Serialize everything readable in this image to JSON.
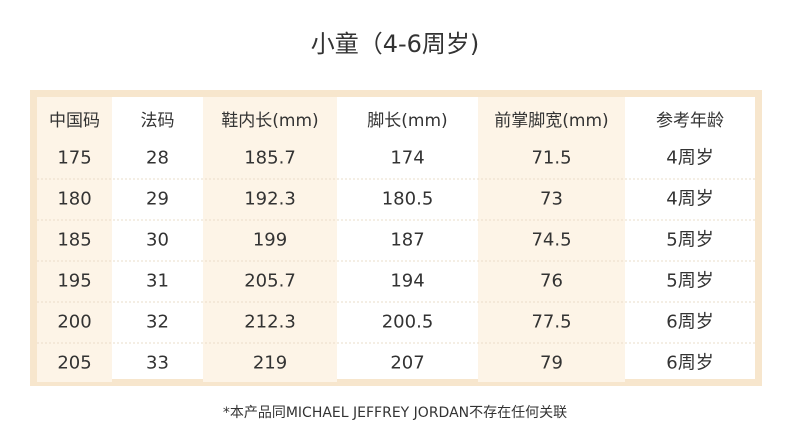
{
  "title": "小童（4-6周岁)",
  "table": {
    "header": [
      "中国码",
      "法码",
      "鞋内长(mm)",
      "脚长(mm)",
      "前掌脚宽(mm)",
      "参考年龄"
    ],
    "rows": [
      [
        175,
        28,
        185.7,
        174,
        71.5,
        "4周岁"
      ],
      [
        180,
        29,
        192.3,
        180.5,
        73,
        "4周岁"
      ],
      [
        185,
        30,
        199,
        187,
        74.5,
        "5周岁"
      ],
      [
        195,
        31,
        205.7,
        194,
        76,
        "5周岁"
      ],
      [
        200,
        32,
        212.3,
        200.5,
        77.5,
        "6周岁"
      ],
      [
        205,
        33,
        219,
        207,
        79,
        "6周岁"
      ]
    ]
  },
  "footnote": "*本产品同MICHAEL JEFFREY JORDAN不存在任何关联"
}
